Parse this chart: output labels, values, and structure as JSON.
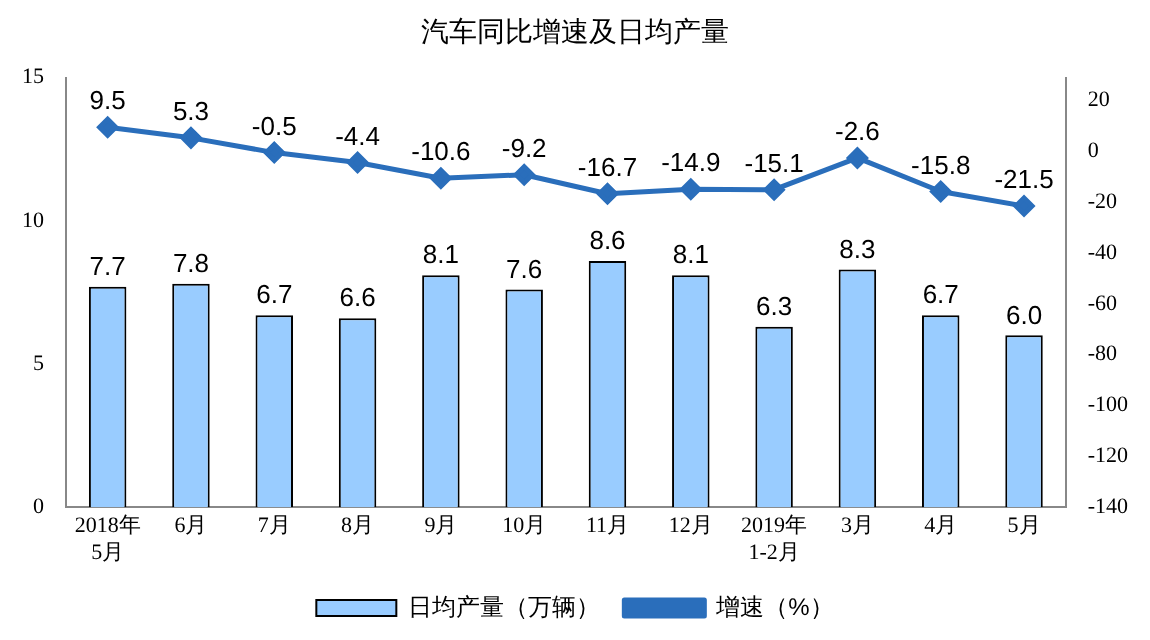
{
  "chart_data": {
    "type": "bar",
    "title": "汽车同比增速及日均产量",
    "categories": [
      "2018年\n5月",
      "6月",
      "7月",
      "8月",
      "9月",
      "10月",
      "11月",
      "12月",
      "2019年\n1-2月",
      "3月",
      "4月",
      "5月"
    ],
    "series": [
      {
        "name": "日均产量（万辆）",
        "color": "#99ccff",
        "values": [
          7.7,
          7.8,
          6.7,
          6.6,
          8.1,
          7.6,
          8.6,
          8.1,
          6.3,
          8.3,
          6.7,
          6.0
        ],
        "value_labels": [
          "7.7",
          "7.8",
          "6.7",
          "6.6",
          "8.1",
          "7.6",
          "8.6",
          "8.1",
          "6.3",
          "8.3",
          "6.7",
          "6.0"
        ]
      },
      {
        "name": "增速（%）",
        "type": "line",
        "axis": "y2",
        "color": "#2a6ebb",
        "marker": "diamond",
        "values": [
          9.5,
          5.3,
          -0.5,
          -4.4,
          -10.6,
          -9.2,
          -16.7,
          -14.9,
          -15.1,
          -2.6,
          -15.8,
          -21.5
        ],
        "value_labels": [
          "9.5",
          "5.3",
          "-0.5",
          "-4.4",
          "-10.6",
          "-9.2",
          "-16.7",
          "-14.9",
          "-15.1",
          "-2.6",
          "-15.8",
          "-21.5"
        ]
      }
    ],
    "ylim": [
      0,
      15
    ],
    "yticks": [
      0,
      5,
      10,
      15
    ],
    "y2lim": [
      -140,
      29
    ],
    "y2ticks": [
      -140,
      -120,
      -100,
      -80,
      -60,
      -40,
      -20,
      0,
      20
    ],
    "grid": false,
    "legend": "bottom"
  }
}
